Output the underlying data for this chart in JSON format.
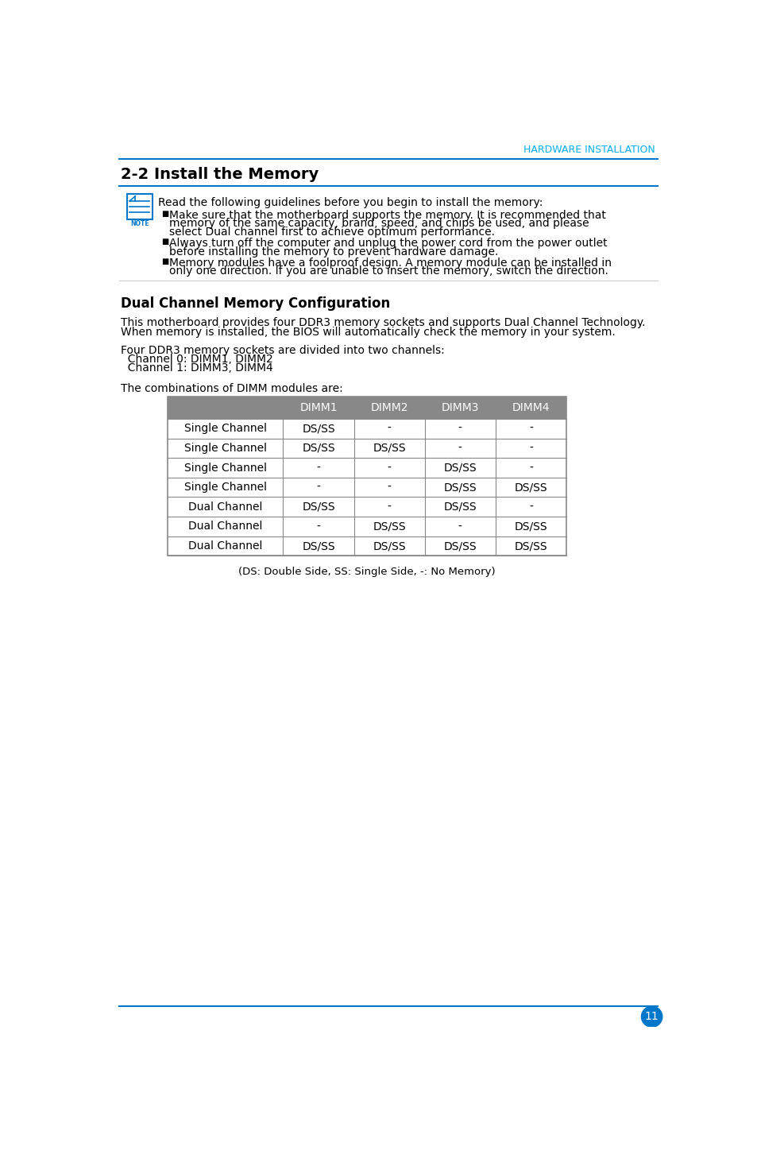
{
  "header_text": "HARDWARE INSTALLATION",
  "header_color": "#00AEEF",
  "title": "2-2 Install the Memory",
  "title_color": "#000000",
  "title_fontsize": 14,
  "blue_line_color": "#0077C8",
  "note_intro": "Read the following guidelines before you begin to install the memory:",
  "bullet1_line1": "Make sure that the motherboard supports the memory. It is recommended that",
  "bullet1_line2": "memory of the same capacity, brand, speed, and chips be used, and please",
  "bullet1_line3": "select Dual channel first to achieve optimum performance.",
  "bullet2_line1": "Always turn off the computer and unplug the power cord from the power outlet",
  "bullet2_line2": "before installing the memory to prevent hardware damage.",
  "bullet3_line1": "Memory modules have a foolproof design. A memory module can be installed in",
  "bullet3_line2": "only one direction. If you are unable to insert the memory, switch the direction.",
  "section_title": "Dual Channel Memory Configuration",
  "body1_line1": "This motherboard provides four DDR3 memory sockets and supports Dual Channel Technology.",
  "body1_line2": "When memory is installed, the BIOS will automatically check the memory in your system.",
  "body2_line1": "Four DDR3 memory sockets are divided into two channels:",
  "body2_line2": "  Channel 0: DIMM1, DIMM2",
  "body2_line3": "  Channel 1: DIMM3, DIMM4",
  "body3": "The combinations of DIMM modules are:",
  "table_header": [
    "",
    "DIMM1",
    "DIMM2",
    "DIMM3",
    "DIMM4"
  ],
  "table_header_bg": "#888888",
  "table_header_fg": "#ffffff",
  "table_rows": [
    [
      "Single Channel",
      "DS/SS",
      "-",
      "-",
      "-"
    ],
    [
      "Single Channel",
      "DS/SS",
      "DS/SS",
      "-",
      "-"
    ],
    [
      "Single Channel",
      "-",
      "-",
      "DS/SS",
      "-"
    ],
    [
      "Single Channel",
      "-",
      "-",
      "DS/SS",
      "DS/SS"
    ],
    [
      "Dual Channel",
      "DS/SS",
      "-",
      "DS/SS",
      "-"
    ],
    [
      "Dual Channel",
      "-",
      "DS/SS",
      "-",
      "DS/SS"
    ],
    [
      "Dual Channel",
      "DS/SS",
      "DS/SS",
      "DS/SS",
      "DS/SS"
    ]
  ],
  "table_note": "(DS: Double Side, SS: Single Side, -: No Memory)",
  "page_number": "11",
  "bg_color": "#ffffff",
  "body_fontsize": 10,
  "table_fontsize": 10,
  "sep_color": "#CCCCCC"
}
